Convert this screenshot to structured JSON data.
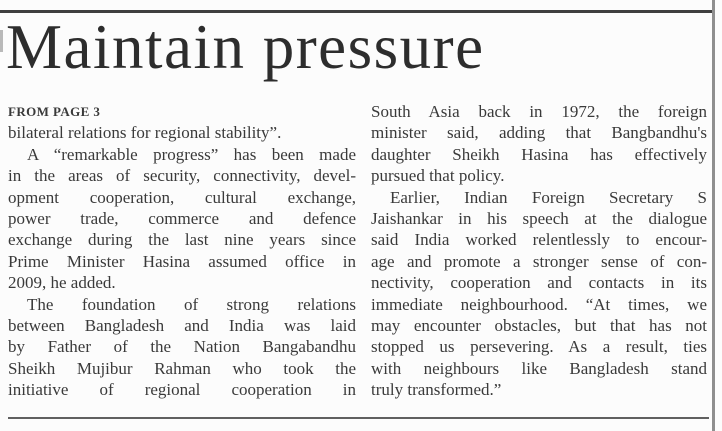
{
  "page": {
    "background_color": "#fcfcfc",
    "text_color": "#3a3a3a",
    "headline_color": "#2d2d2d",
    "top_rule_color": "#3f3f3f",
    "right_rule_color": "#8f8f8f",
    "bottom_rule_color": "#606060"
  },
  "article": {
    "headline": "Maintain pressure",
    "kicker": "FROM PAGE 3",
    "columns": [
      {
        "lines": [
          {
            "text": "FROM PAGE 3",
            "style": "kicker"
          },
          {
            "text": "bilateral relations for regional stability”."
          },
          {
            "text": "A “remarkable progress” has been made",
            "justify": true,
            "indent": true
          },
          {
            "text": "in the areas of security, connectivity, devel-",
            "justify": true
          },
          {
            "text": "opment cooperation, cultural exchange,",
            "justify": true
          },
          {
            "text": "power trade, commerce and defence",
            "justify": true
          },
          {
            "text": "exchange during the last nine years since",
            "justify": true
          },
          {
            "text": "Prime Minister Hasina assumed office in",
            "justify": true
          },
          {
            "text": "2009, he added."
          },
          {
            "text": "The foundation of strong relations",
            "justify": true,
            "indent": true
          },
          {
            "text": "between Bangladesh and India was laid",
            "justify": true
          },
          {
            "text": "by Father of the Nation Bangabandhu",
            "justify": true
          },
          {
            "text": "Sheikh Mujibur Rahman who took the",
            "justify": true
          },
          {
            "text": "initiative of regional cooperation in",
            "justify": true
          }
        ]
      },
      {
        "lines": [
          {
            "text": "South Asia back in 1972, the foreign",
            "justify": true
          },
          {
            "text": "minister said, adding that Bangbandhu's",
            "justify": true
          },
          {
            "text": "daughter Sheikh Hasina has effectively",
            "justify": true
          },
          {
            "text": "pursued that policy."
          },
          {
            "text": "Earlier, Indian Foreign Secretary S",
            "justify": true,
            "indent": true
          },
          {
            "text": "Jaishankar in his speech at the dialogue",
            "justify": true
          },
          {
            "text": "said India worked relentlessly to encour-",
            "justify": true
          },
          {
            "text": "age and promote a stronger sense of con-",
            "justify": true
          },
          {
            "text": "nectivity, cooperation and contacts in its",
            "justify": true
          },
          {
            "text": "immediate neighbourhood. “At times, we",
            "justify": true
          },
          {
            "text": "may encounter obstacles, but that has not",
            "justify": true
          },
          {
            "text": "stopped us persevering. As a result, ties",
            "justify": true
          },
          {
            "text": "with neighbours like Bangladesh stand",
            "justify": true
          },
          {
            "text": "truly transformed.”"
          }
        ]
      }
    ]
  }
}
